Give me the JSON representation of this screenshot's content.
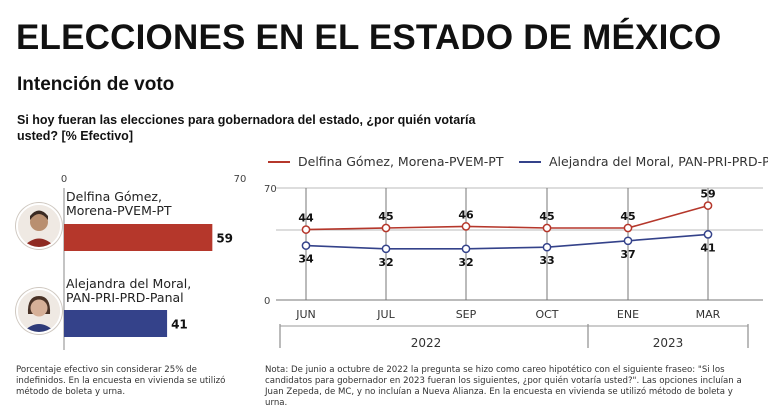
{
  "header": {
    "title": "ELECCIONES EN EL ESTADO DE MÉXICO",
    "subtitle": "Intención de voto",
    "question": "Si hoy fueran las elecciones para gobernadora del estado, ¿por quién votaría usted? [% Efectivo]"
  },
  "colors": {
    "gomez": "#b5372b",
    "moral": "#34428a",
    "axis": "#555555"
  },
  "chart_data": [
    {
      "type": "bar",
      "orientation": "horizontal",
      "title": "",
      "categories": [
        "Delfina Gómez, Morena-PVEM-PT",
        "Alejandra del Moral, PAN-PRI-PRD-Panal"
      ],
      "label_lines": [
        [
          "Delfina Gómez,",
          "Morena-PVEM-PT"
        ],
        [
          "Alejandra del Moral,",
          "PAN-PRI-PRD-Panal"
        ]
      ],
      "values": [
        59,
        41
      ],
      "xlim": [
        0,
        70
      ],
      "tick_labels": [
        "0",
        "70"
      ]
    },
    {
      "type": "line",
      "x": [
        "JUN",
        "JUL",
        "SEP",
        "OCT",
        "ENE",
        "MAR"
      ],
      "groups": [
        {
          "label": "2022",
          "months": [
            "JUN",
            "JUL",
            "SEP",
            "OCT"
          ]
        },
        {
          "label": "2023",
          "months": [
            "ENE",
            "MAR"
          ]
        }
      ],
      "series": [
        {
          "name": "Delfina Gómez, Morena-PVEM-PT",
          "values": [
            44,
            45,
            46,
            45,
            45,
            59
          ]
        },
        {
          "name": "Alejandra del Moral, PAN-PRI-PRD-Panal",
          "values": [
            34,
            32,
            32,
            33,
            37,
            41
          ]
        }
      ],
      "ylim": [
        0,
        70
      ],
      "ytick_labels": [
        "70",
        "0"
      ]
    }
  ],
  "notes": {
    "left": "Porcentaje efectivo sin considerar 25% de indefinidos. En la encuesta en vivienda se utilizó método de boleta y urna.",
    "right": "Nota: De junio a octubre de 2022 la pregunta se hizo como careo hipotético con el siguiente fraseo: \"Si los candidatos para gobernador en 2023 fueran los siguientes, ¿por quién votaría usted?\". Las opciones incluían a Juan Zepeda, de MC, y no incluían a Nueva Alianza. En la encuesta en vivienda se utilizó método de boleta y urna."
  },
  "avatars": {
    "top": "person-icon",
    "bottom": "person-icon"
  }
}
